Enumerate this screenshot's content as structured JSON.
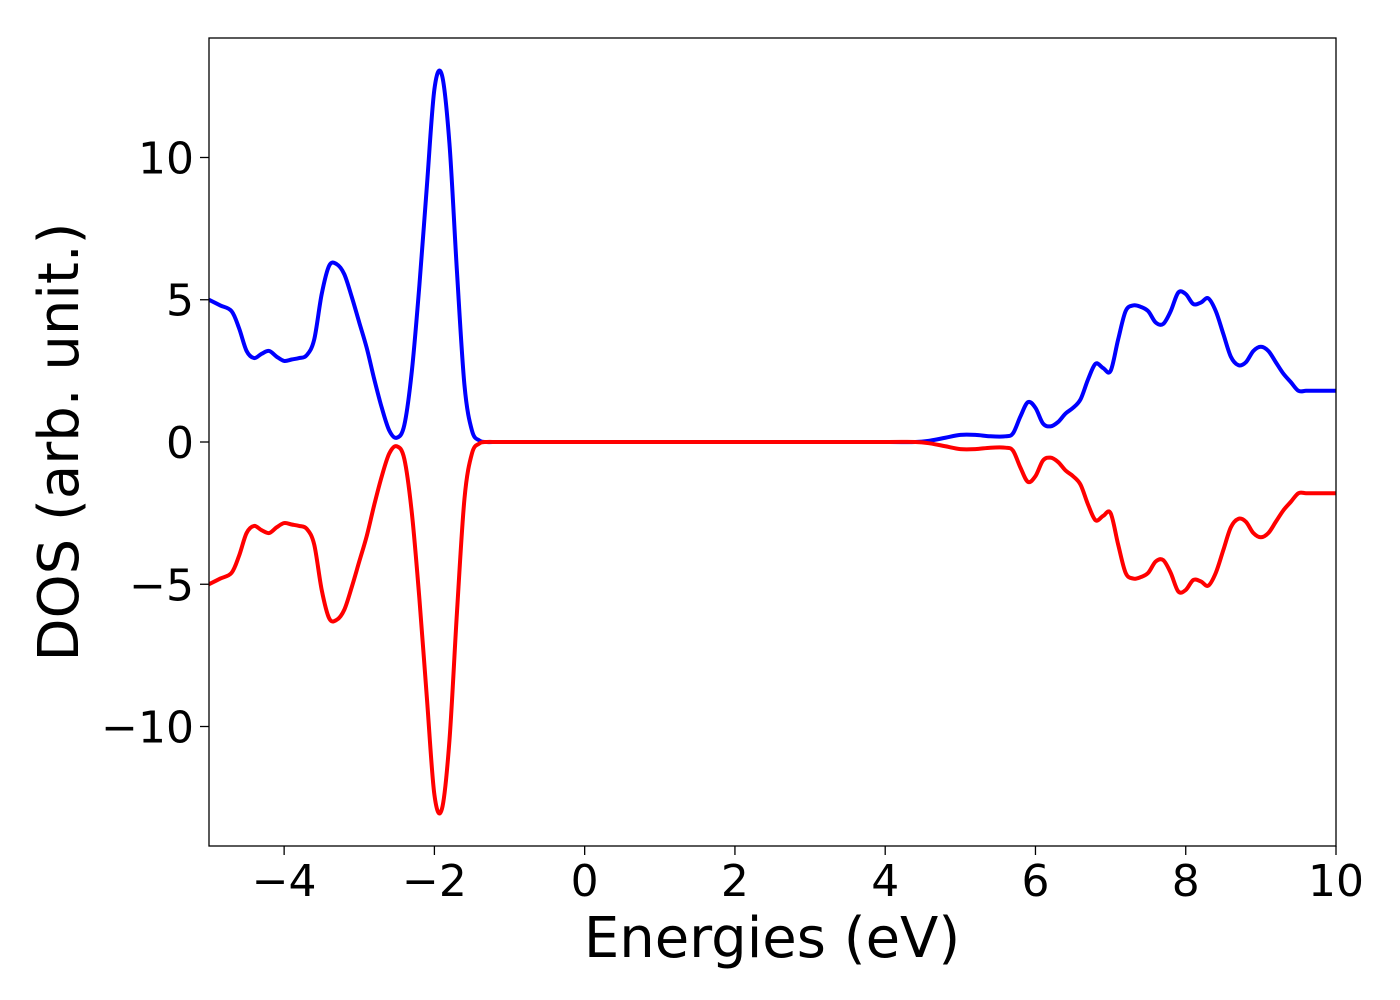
{
  "chart_data": {
    "type": "line",
    "title": "",
    "xlabel": "Energies (eV)",
    "ylabel": "DOS (arb. unit.)",
    "xlim": [
      -5,
      10
    ],
    "ylim": [
      -14.2,
      14.2
    ],
    "grid": false,
    "legend": "none",
    "x_ticks": [
      {
        "value": -4,
        "label": "−4"
      },
      {
        "value": -2,
        "label": "−2"
      },
      {
        "value": 0,
        "label": "0"
      },
      {
        "value": 2,
        "label": "2"
      },
      {
        "value": 4,
        "label": "4"
      },
      {
        "value": 6,
        "label": "6"
      },
      {
        "value": 8,
        "label": "8"
      },
      {
        "value": 10,
        "label": "10"
      }
    ],
    "y_ticks": [
      {
        "value": -10,
        "label": "−10"
      },
      {
        "value": -5,
        "label": "−5"
      },
      {
        "value": 0,
        "label": "0"
      },
      {
        "value": 5,
        "label": "5"
      },
      {
        "value": 10,
        "label": "10"
      }
    ],
    "series": [
      {
        "color": "#0000ff",
        "x": [
          -5.0,
          -4.85,
          -4.7,
          -4.6,
          -4.5,
          -4.4,
          -4.3,
          -4.2,
          -4.1,
          -4.0,
          -3.9,
          -3.8,
          -3.7,
          -3.6,
          -3.5,
          -3.4,
          -3.3,
          -3.2,
          -3.1,
          -3.0,
          -2.9,
          -2.8,
          -2.7,
          -2.6,
          -2.5,
          -2.4,
          -2.3,
          -2.2,
          -2.1,
          -2.0,
          -1.9,
          -1.8,
          -1.7,
          -1.6,
          -1.5,
          -1.4,
          -1.3,
          -1.2,
          -1.15,
          -1.1,
          -1.0,
          -0.9,
          -0.8,
          -0.7,
          -0.6,
          -0.5,
          0.0,
          1.0,
          2.0,
          3.0,
          4.0,
          4.4,
          4.6,
          4.8,
          5.0,
          5.2,
          5.4,
          5.6,
          5.7,
          5.8,
          5.9,
          6.0,
          6.1,
          6.2,
          6.3,
          6.4,
          6.5,
          6.6,
          6.7,
          6.8,
          6.9,
          7.0,
          7.1,
          7.2,
          7.3,
          7.4,
          7.5,
          7.6,
          7.7,
          7.8,
          7.9,
          8.0,
          8.1,
          8.2,
          8.3,
          8.4,
          8.5,
          8.6,
          8.7,
          8.8,
          8.9,
          9.0,
          9.1,
          9.2,
          9.3,
          9.4,
          9.5,
          9.6,
          9.7,
          9.8,
          9.9,
          10.0
        ],
        "y": [
          5.0,
          4.8,
          4.6,
          4.0,
          3.2,
          2.95,
          3.1,
          3.2,
          3.0,
          2.85,
          2.9,
          2.95,
          3.05,
          3.6,
          5.2,
          6.2,
          6.25,
          5.9,
          5.1,
          4.2,
          3.3,
          2.2,
          1.2,
          0.4,
          0.15,
          0.6,
          2.5,
          5.5,
          9.0,
          12.4,
          12.9,
          10.5,
          6.0,
          2.0,
          0.4,
          0.05,
          0.0,
          0.0,
          0.0,
          0.0,
          0.0,
          0.0,
          0.0,
          0.0,
          0.0,
          0.0,
          0.0,
          0.0,
          0.0,
          0.0,
          0.0,
          0.0,
          0.05,
          0.15,
          0.25,
          0.25,
          0.2,
          0.2,
          0.3,
          0.9,
          1.4,
          1.2,
          0.65,
          0.55,
          0.7,
          1.0,
          1.2,
          1.5,
          2.2,
          2.75,
          2.6,
          2.5,
          3.6,
          4.6,
          4.8,
          4.75,
          4.6,
          4.2,
          4.15,
          4.6,
          5.25,
          5.2,
          4.85,
          4.9,
          5.05,
          4.6,
          3.8,
          3.0,
          2.7,
          2.8,
          3.2,
          3.35,
          3.2,
          2.8,
          2.4,
          2.1,
          1.8,
          1.8,
          1.8,
          1.8,
          1.8,
          1.8
        ]
      },
      {
        "color": "#ff0000",
        "x": [
          -5.0,
          -4.85,
          -4.7,
          -4.6,
          -4.5,
          -4.4,
          -4.3,
          -4.2,
          -4.1,
          -4.0,
          -3.9,
          -3.8,
          -3.7,
          -3.6,
          -3.5,
          -3.4,
          -3.3,
          -3.2,
          -3.1,
          -3.0,
          -2.9,
          -2.8,
          -2.7,
          -2.6,
          -2.5,
          -2.4,
          -2.3,
          -2.2,
          -2.1,
          -2.0,
          -1.9,
          -1.8,
          -1.7,
          -1.6,
          -1.5,
          -1.4,
          -1.3,
          -1.2,
          -1.15,
          -1.1,
          -1.0,
          -0.9,
          -0.8,
          -0.7,
          -0.6,
          -0.5,
          0.0,
          1.0,
          2.0,
          3.0,
          4.0,
          4.4,
          4.6,
          4.8,
          5.0,
          5.2,
          5.4,
          5.6,
          5.7,
          5.8,
          5.9,
          6.0,
          6.1,
          6.2,
          6.3,
          6.4,
          6.5,
          6.6,
          6.7,
          6.8,
          6.9,
          7.0,
          7.1,
          7.2,
          7.3,
          7.4,
          7.5,
          7.6,
          7.7,
          7.8,
          7.9,
          8.0,
          8.1,
          8.2,
          8.3,
          8.4,
          8.5,
          8.6,
          8.7,
          8.8,
          8.9,
          9.0,
          9.1,
          9.2,
          9.3,
          9.4,
          9.5,
          9.6,
          9.7,
          9.8,
          9.9,
          10.0
        ],
        "y": [
          -5.0,
          -4.8,
          -4.6,
          -4.0,
          -3.2,
          -2.95,
          -3.1,
          -3.2,
          -3.0,
          -2.85,
          -2.9,
          -2.95,
          -3.05,
          -3.6,
          -5.2,
          -6.2,
          -6.25,
          -5.9,
          -5.1,
          -4.2,
          -3.3,
          -2.2,
          -1.2,
          -0.4,
          -0.15,
          -0.6,
          -2.5,
          -5.5,
          -9.0,
          -12.4,
          -12.9,
          -10.5,
          -6.0,
          -2.0,
          -0.4,
          -0.05,
          0.0,
          0.0,
          0.0,
          0.0,
          0.0,
          0.0,
          0.0,
          0.0,
          0.0,
          0.0,
          0.0,
          0.0,
          0.0,
          0.0,
          0.0,
          0.0,
          -0.05,
          -0.15,
          -0.25,
          -0.25,
          -0.2,
          -0.2,
          -0.3,
          -0.9,
          -1.4,
          -1.2,
          -0.65,
          -0.55,
          -0.7,
          -1.0,
          -1.2,
          -1.5,
          -2.2,
          -2.75,
          -2.6,
          -2.5,
          -3.6,
          -4.6,
          -4.8,
          -4.75,
          -4.6,
          -4.2,
          -4.15,
          -4.6,
          -5.25,
          -5.2,
          -4.85,
          -4.9,
          -5.05,
          -4.6,
          -3.8,
          -3.0,
          -2.7,
          -2.8,
          -3.2,
          -3.35,
          -3.2,
          -2.8,
          -2.4,
          -2.1,
          -1.8,
          -1.8,
          -1.8,
          -1.8,
          -1.8,
          -1.8
        ]
      }
    ]
  }
}
